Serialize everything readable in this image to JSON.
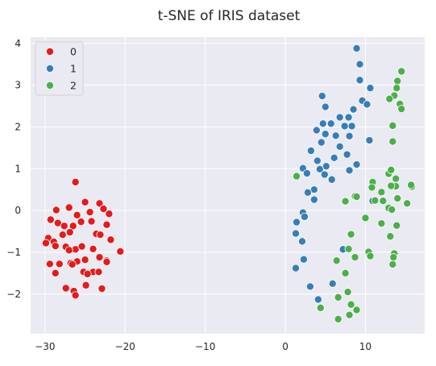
{
  "chart_data": {
    "type": "scatter",
    "title": "t-SNE of IRIS dataset",
    "xlabel": "",
    "ylabel": "",
    "xlim": [
      -31.8,
      17.4
    ],
    "ylim": [
      -2.95,
      4.15
    ],
    "xticks": [
      -30,
      -20,
      -10,
      0,
      10
    ],
    "yticks": [
      -2,
      -1,
      0,
      1,
      2,
      3,
      4
    ],
    "xtick_labels": [
      "−30",
      "−20",
      "−10",
      "0",
      "10"
    ],
    "ytick_labels": [
      "−2",
      "−1",
      "0",
      "1",
      "2",
      "3",
      "4"
    ],
    "grid": true,
    "background": "#eaeaf2",
    "legend_position": "top-left",
    "series": [
      {
        "name": "0",
        "color": "#e41a1c",
        "points": [
          [
            -26.2,
            0.68
          ],
          [
            -29.3,
            -0.22
          ],
          [
            -28.6,
            0.01
          ],
          [
            -27.0,
            0.07
          ],
          [
            -26.0,
            -0.11
          ],
          [
            -25.0,
            0.2
          ],
          [
            -24.4,
            -0.04
          ],
          [
            -23.2,
            0.17
          ],
          [
            -22.7,
            0.04
          ],
          [
            -22.0,
            -0.08
          ],
          [
            -28.4,
            -0.3
          ],
          [
            -27.6,
            -0.37
          ],
          [
            -26.5,
            -0.37
          ],
          [
            -25.5,
            -0.27
          ],
          [
            -24.2,
            -0.26
          ],
          [
            -22.3,
            -0.34
          ],
          [
            -29.6,
            -0.66
          ],
          [
            -28.9,
            -0.75
          ],
          [
            -27.8,
            -0.58
          ],
          [
            -26.9,
            -0.52
          ],
          [
            -23.6,
            -0.56
          ],
          [
            -23.1,
            -0.58
          ],
          [
            -21.8,
            -0.7
          ],
          [
            -29.9,
            -0.78
          ],
          [
            -28.7,
            -0.85
          ],
          [
            -27.4,
            -0.87
          ],
          [
            -26.2,
            -0.93
          ],
          [
            -25.4,
            -0.86
          ],
          [
            -24.0,
            -0.92
          ],
          [
            -20.6,
            -0.98
          ],
          [
            -29.4,
            -1.28
          ],
          [
            -28.2,
            -1.28
          ],
          [
            -26.8,
            -1.26
          ],
          [
            -26.0,
            -1.22
          ],
          [
            -25.0,
            -1.18
          ],
          [
            -23.2,
            -1.12
          ],
          [
            -22.3,
            -1.2
          ],
          [
            -28.7,
            -1.5
          ],
          [
            -25.2,
            -1.47
          ],
          [
            -24.0,
            -1.47
          ],
          [
            -23.3,
            -1.47
          ],
          [
            -27.4,
            -1.86
          ],
          [
            -26.4,
            -1.93
          ],
          [
            -26.2,
            -2.03
          ],
          [
            -24.9,
            -1.79
          ],
          [
            -22.9,
            -1.87
          ],
          [
            -24.7,
            -1.52
          ],
          [
            -26.6,
            -1.29
          ],
          [
            -27.0,
            -0.95
          ],
          [
            -22.3,
            -1.23
          ]
        ]
      },
      {
        "name": "1",
        "color": "#377eb8",
        "points": [
          [
            8.9,
            3.88
          ],
          [
            9.3,
            3.5
          ],
          [
            9.3,
            3.12
          ],
          [
            10.6,
            2.93
          ],
          [
            4.6,
            2.74
          ],
          [
            5.0,
            2.48
          ],
          [
            9.6,
            2.63
          ],
          [
            10.2,
            2.54
          ],
          [
            8.3,
            2.02
          ],
          [
            7.9,
            2.23
          ],
          [
            4.7,
            2.08
          ],
          [
            5.7,
            2.08
          ],
          [
            7.4,
            2.02
          ],
          [
            6.8,
            2.23
          ],
          [
            3.9,
            1.92
          ],
          [
            5.0,
            1.83
          ],
          [
            6.3,
            1.79
          ],
          [
            4.5,
            1.63
          ],
          [
            8.0,
            1.78
          ],
          [
            10.5,
            1.68
          ],
          [
            6.8,
            1.53
          ],
          [
            3.2,
            1.43
          ],
          [
            4.0,
            1.19
          ],
          [
            6.1,
            1.26
          ],
          [
            5.1,
            1.06
          ],
          [
            7.7,
            1.34
          ],
          [
            8.9,
            1.1
          ],
          [
            2.2,
            1.01
          ],
          [
            2.7,
            0.89
          ],
          [
            4.3,
            0.99
          ],
          [
            4.9,
            0.86
          ],
          [
            5.8,
            0.74
          ],
          [
            8.0,
            0.96
          ],
          [
            3.6,
            0.5
          ],
          [
            2.8,
            0.43
          ],
          [
            2.2,
            -0.05
          ],
          [
            3.6,
            0.26
          ],
          [
            1.4,
            -0.28
          ],
          [
            2.4,
            -0.15
          ],
          [
            1.3,
            -0.55
          ],
          [
            2.1,
            -0.72
          ],
          [
            1.3,
            -1.38
          ],
          [
            2.3,
            -1.17
          ],
          [
            7.2,
            -0.93
          ],
          [
            3.1,
            -1.82
          ],
          [
            4.1,
            -2.13
          ],
          [
            5.9,
            -1.75
          ],
          [
            2.1,
            -0.74
          ],
          [
            10.9,
            0.23
          ],
          [
            8.5,
            2.42
          ]
        ]
      },
      {
        "name": "2",
        "color": "#4daf4a",
        "points": [
          [
            14.5,
            3.33
          ],
          [
            14.0,
            3.1
          ],
          [
            13.9,
            2.93
          ],
          [
            14.3,
            2.55
          ],
          [
            13.6,
            2.75
          ],
          [
            13.0,
            2.67
          ],
          [
            14.5,
            2.43
          ],
          [
            13.4,
            2.03
          ],
          [
            13.4,
            1.65
          ],
          [
            1.4,
            0.82
          ],
          [
            12.9,
            0.88
          ],
          [
            13.2,
            0.97
          ],
          [
            13.8,
            0.76
          ],
          [
            10.9,
            0.68
          ],
          [
            10.8,
            0.55
          ],
          [
            12.0,
            0.44
          ],
          [
            13.8,
            0.58
          ],
          [
            13.2,
            0.59
          ],
          [
            14.0,
            0.29
          ],
          [
            15.2,
            0.17
          ],
          [
            15.8,
            0.57
          ],
          [
            15.7,
            0.61
          ],
          [
            11.2,
            0.24
          ],
          [
            12.2,
            0.23
          ],
          [
            12.9,
            0.06
          ],
          [
            13.3,
            0.02
          ],
          [
            8.7,
            0.34
          ],
          [
            8.9,
            0.33
          ],
          [
            7.5,
            0.22
          ],
          [
            10.0,
            -0.18
          ],
          [
            12.0,
            -0.31
          ],
          [
            13.9,
            -0.36
          ],
          [
            13.1,
            -0.62
          ],
          [
            8.2,
            -0.57
          ],
          [
            7.9,
            -0.92
          ],
          [
            10.4,
            -0.99
          ],
          [
            13.6,
            -1.03
          ],
          [
            13.5,
            -1.12
          ],
          [
            10.6,
            -1.09
          ],
          [
            13.4,
            -1.29
          ],
          [
            6.4,
            -1.2
          ],
          [
            8.7,
            -1.12
          ],
          [
            7.5,
            -1.5
          ],
          [
            7.8,
            -1.95
          ],
          [
            6.6,
            -2.08
          ],
          [
            8.2,
            -2.25
          ],
          [
            8.9,
            -2.38
          ],
          [
            8.0,
            -2.5
          ],
          [
            6.6,
            -2.6
          ],
          [
            4.4,
            -2.33
          ]
        ]
      }
    ]
  }
}
